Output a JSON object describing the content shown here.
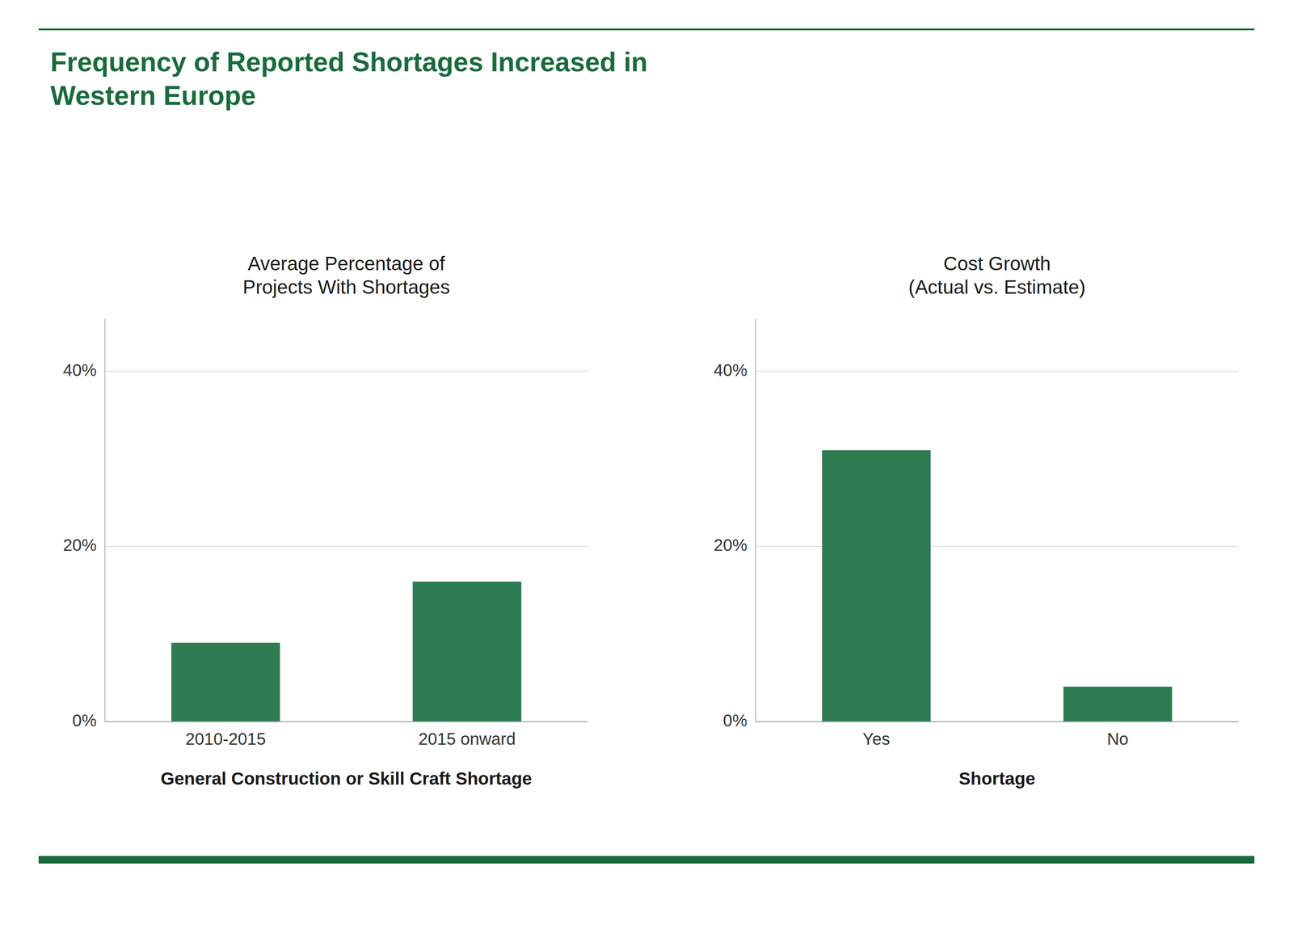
{
  "title": "Frequency of Reported Shortages Increased in\nWestern Europe",
  "chart_data": [
    {
      "type": "bar",
      "subtitle": "Average Percentage of\nProjects With Shortages",
      "categories": [
        "2010-2015",
        "2015 onward"
      ],
      "values": [
        9,
        16
      ],
      "color": "#2e7d52",
      "xlabel": "General Construction or Skill Craft Shortage",
      "ylim": [
        0,
        46
      ],
      "yticks": [
        {
          "value": 0,
          "label": "0%"
        },
        {
          "value": 20,
          "label": "20%"
        },
        {
          "value": 40,
          "label": "40%"
        }
      ],
      "grid": true
    },
    {
      "type": "bar",
      "subtitle": "Cost Growth\n(Actual vs. Estimate)",
      "categories": [
        "Yes",
        "No"
      ],
      "values": [
        31,
        4
      ],
      "color": "#2e7d52",
      "xlabel": "Shortage",
      "ylim": [
        0,
        46
      ],
      "yticks": [
        {
          "value": 0,
          "label": "0%"
        },
        {
          "value": 20,
          "label": "20%"
        },
        {
          "value": 40,
          "label": "40%"
        }
      ],
      "grid": true
    }
  ]
}
